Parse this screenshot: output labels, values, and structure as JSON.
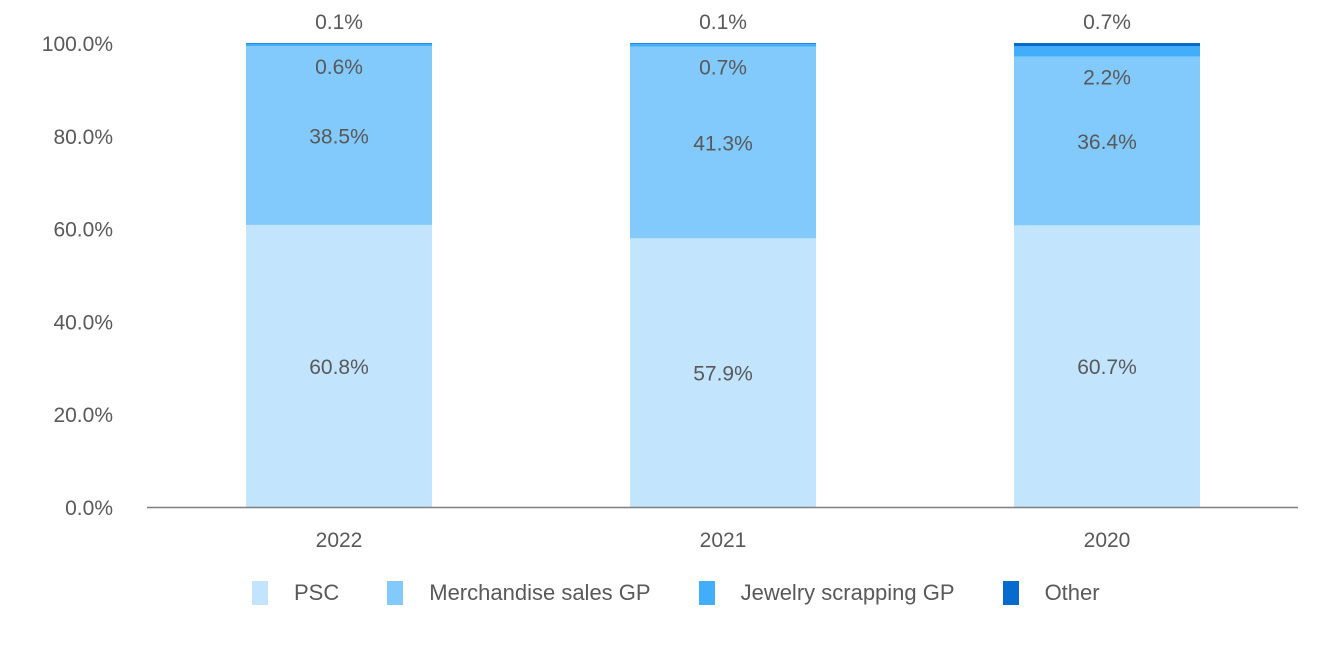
{
  "chart_data": {
    "type": "bar",
    "stacked": true,
    "title": "",
    "xlabel": "",
    "ylabel": "",
    "categories": [
      "2022",
      "2021",
      "2020"
    ],
    "series": [
      {
        "name": "PSC",
        "color": "#c2e5fd",
        "values": [
          60.8,
          57.9,
          60.7
        ],
        "labels": [
          "60.8%",
          "57.9%",
          "60.7%"
        ]
      },
      {
        "name": "Merchandise sales GP",
        "color": "#82c9fc",
        "values": [
          38.5,
          41.3,
          36.4
        ],
        "labels": [
          "38.5%",
          "41.3%",
          "36.4%"
        ]
      },
      {
        "name": "Jewelry scrapping GP",
        "color": "#42aefa",
        "values": [
          0.6,
          0.7,
          2.2
        ],
        "labels": [
          "0.6%",
          "0.7%",
          "2.2%"
        ]
      },
      {
        "name": "Other",
        "color": "#066bcc",
        "values": [
          0.1,
          0.1,
          0.7
        ],
        "labels": [
          "0.1%",
          "0.1%",
          "0.7%"
        ]
      }
    ],
    "ylim": [
      0,
      100
    ],
    "yticks": [
      "0.0%",
      "20.0%",
      "40.0%",
      "60.0%",
      "80.0%",
      "100.0%"
    ],
    "grid": false,
    "legend": "bottom"
  }
}
